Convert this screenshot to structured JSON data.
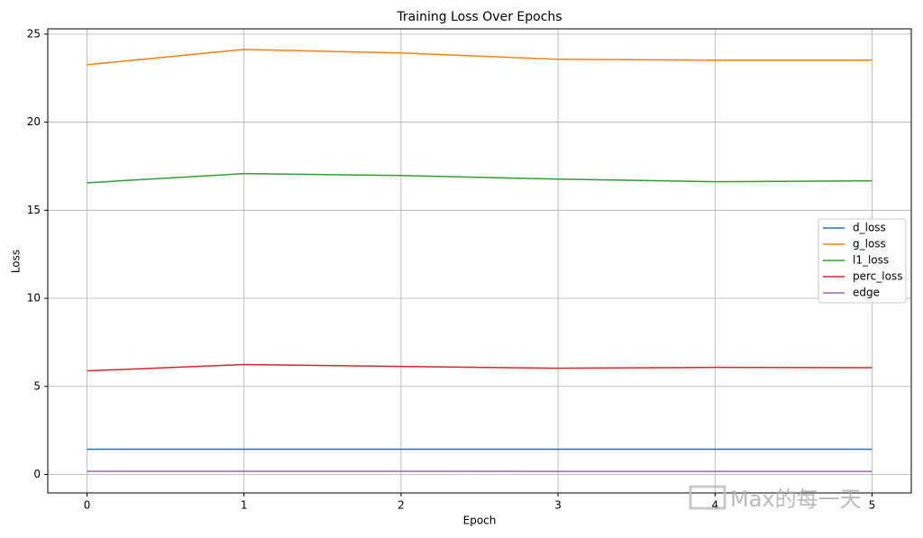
{
  "chart_data": {
    "type": "line",
    "title": "Training Loss Over Epochs",
    "x_label": "Epoch",
    "y_label": "Loss",
    "x": [
      0,
      1,
      2,
      3,
      4,
      5
    ],
    "series": [
      {
        "name": "d_loss",
        "color": "#1f77b4",
        "values": [
          1.43,
          1.43,
          1.43,
          1.43,
          1.43,
          1.43
        ]
      },
      {
        "name": "g_loss",
        "color": "#ff7f0e",
        "values": [
          23.26,
          24.13,
          23.93,
          23.57,
          23.52,
          23.52
        ]
      },
      {
        "name": "l1_loss",
        "color": "#2ca02c",
        "values": [
          16.56,
          17.08,
          16.97,
          16.77,
          16.62,
          16.67
        ]
      },
      {
        "name": "perc_loss",
        "color": "#d62728",
        "values": [
          5.88,
          6.24,
          6.13,
          6.03,
          6.08,
          6.06
        ]
      },
      {
        "name": "edge",
        "color": "#9467bd",
        "values": [
          0.18,
          0.18,
          0.18,
          0.17,
          0.17,
          0.17
        ]
      }
    ],
    "xlim": [
      -0.25,
      5.25
    ],
    "ylim": [
      -1.05,
      25.3
    ],
    "xticks": [
      0,
      1,
      2,
      3,
      4,
      5
    ],
    "yticks": [
      0,
      5,
      10,
      15,
      20,
      25
    ],
    "grid": true,
    "legend": "center right",
    "watermark": "Max的每一天"
  }
}
